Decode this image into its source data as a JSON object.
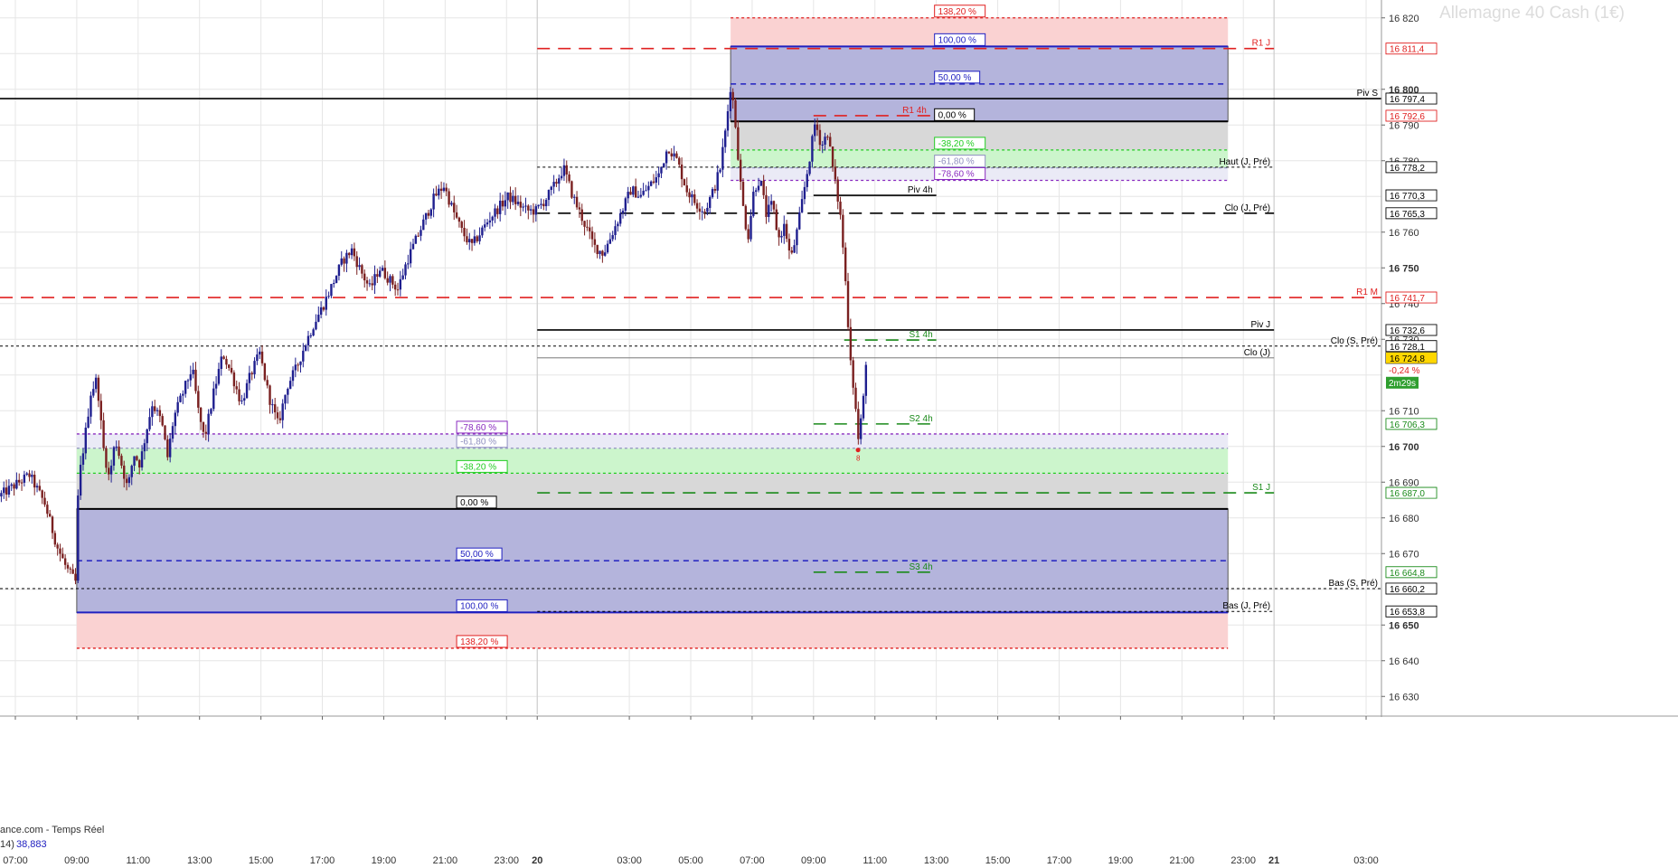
{
  "colors": {
    "background": "#ffffff",
    "grid": "#e6e6e6",
    "candle_up": "#1f1f8f",
    "candle_down": "#7a2020",
    "resistance": "#e02020",
    "support": "#1a8a1a",
    "pivot": "#000000",
    "fib_100": "#2020c0",
    "fib_382": "#22cc22",
    "fib_618": "#9090c0",
    "fib_786": "#8a2bbf",
    "fib_1382": "#e02020",
    "zone_blue": "#b4b4dc",
    "zone_gray": "#d8d8d8",
    "zone_green": "#ccf5cc",
    "zone_lavender": "#eaeaf6",
    "zone_pink": "#fad2d2",
    "price_highlight": "#ffd700",
    "timer_bg": "#2e9e2e"
  },
  "watermark": "Allemagne 40 Cash (1€)",
  "source_label": "ance.com - Temps Réel",
  "indicator": {
    "label": "14)",
    "value": "38,883"
  },
  "timer": "2m29s",
  "chart_data": {
    "type": "candlestick",
    "title": "Allemagne 40 Cash (1€)",
    "y_range": [
      16625,
      16825
    ],
    "x_range_hours": [
      6.5,
      51.5
    ],
    "grid": true,
    "y_ticks": [
      16630,
      16640,
      16650,
      16660,
      16670,
      16680,
      16690,
      16700,
      16710,
      16720,
      16730,
      16740,
      16750,
      16760,
      16770,
      16780,
      16790,
      16800,
      16810,
      16820
    ],
    "y_tick_labels": [
      {
        "v": 16820,
        "t": "16 820"
      },
      {
        "v": 16800,
        "t": "16 800"
      },
      {
        "v": 16790,
        "t": "16 790"
      },
      {
        "v": 16780,
        "t": "16 780"
      },
      {
        "v": 16760,
        "t": "16 760"
      },
      {
        "v": 16750,
        "t": "16 750"
      },
      {
        "v": 16740,
        "t": "16 740"
      },
      {
        "v": 16730,
        "t": "16 730"
      },
      {
        "v": 16710,
        "t": "16 710"
      },
      {
        "v": 16700,
        "t": "16 700"
      },
      {
        "v": 16690,
        "t": "16 690"
      },
      {
        "v": 16680,
        "t": "16 680"
      },
      {
        "v": 16670,
        "t": "16 670"
      },
      {
        "v": 16650,
        "t": "16 650"
      },
      {
        "v": 16640,
        "t": "16 640"
      },
      {
        "v": 16630,
        "t": "16 630"
      }
    ],
    "x_ticks": [
      {
        "h": 7,
        "t": "07:00"
      },
      {
        "h": 9,
        "t": "09:00"
      },
      {
        "h": 11,
        "t": "11:00"
      },
      {
        "h": 13,
        "t": "13:00"
      },
      {
        "h": 15,
        "t": "15:00"
      },
      {
        "h": 17,
        "t": "17:00"
      },
      {
        "h": 19,
        "t": "19:00"
      },
      {
        "h": 21,
        "t": "21:00"
      },
      {
        "h": 23,
        "t": "23:00"
      },
      {
        "h": 24,
        "t": "20"
      },
      {
        "h": 27,
        "t": "03:00"
      },
      {
        "h": 29,
        "t": "05:00"
      },
      {
        "h": 31,
        "t": "07:00"
      },
      {
        "h": 33,
        "t": "09:00"
      },
      {
        "h": 35,
        "t": "11:00"
      },
      {
        "h": 37,
        "t": "13:00"
      },
      {
        "h": 39,
        "t": "15:00"
      },
      {
        "h": 41,
        "t": "17:00"
      },
      {
        "h": 43,
        "t": "19:00"
      },
      {
        "h": 45,
        "t": "21:00"
      },
      {
        "h": 47,
        "t": "23:00"
      },
      {
        "h": 48,
        "t": "21"
      },
      {
        "h": 51,
        "t": "03:00"
      }
    ],
    "day_separators": [
      24,
      48
    ],
    "price_path": [
      [
        6.5,
        16686
      ],
      [
        7.0,
        16689
      ],
      [
        7.5,
        16692
      ],
      [
        8.0,
        16684
      ],
      [
        8.4,
        16672
      ],
      [
        8.7,
        16666
      ],
      [
        9.0,
        16662
      ],
      [
        9.1,
        16690
      ],
      [
        9.3,
        16702
      ],
      [
        9.5,
        16715
      ],
      [
        9.7,
        16719
      ],
      [
        9.9,
        16700
      ],
      [
        10.1,
        16691
      ],
      [
        10.3,
        16702
      ],
      [
        10.5,
        16695
      ],
      [
        10.7,
        16688
      ],
      [
        10.9,
        16698
      ],
      [
        11.1,
        16695
      ],
      [
        11.3,
        16704
      ],
      [
        11.5,
        16712
      ],
      [
        11.8,
        16707
      ],
      [
        12.0,
        16697
      ],
      [
        12.2,
        16708
      ],
      [
        12.5,
        16715
      ],
      [
        12.8,
        16722
      ],
      [
        13.0,
        16710
      ],
      [
        13.2,
        16702
      ],
      [
        13.5,
        16715
      ],
      [
        13.8,
        16726
      ],
      [
        14.1,
        16720
      ],
      [
        14.4,
        16712
      ],
      [
        14.7,
        16720
      ],
      [
        15.0,
        16726
      ],
      [
        15.3,
        16714
      ],
      [
        15.6,
        16706
      ],
      [
        15.9,
        16717
      ],
      [
        16.2,
        16722
      ],
      [
        16.5,
        16729
      ],
      [
        16.8,
        16735
      ],
      [
        17.1,
        16740
      ],
      [
        17.4,
        16746
      ],
      [
        17.7,
        16752
      ],
      [
        18.0,
        16755
      ],
      [
        18.3,
        16749
      ],
      [
        18.6,
        16744
      ],
      [
        18.9,
        16750
      ],
      [
        19.2,
        16747
      ],
      [
        19.5,
        16744
      ],
      [
        19.8,
        16752
      ],
      [
        20.1,
        16758
      ],
      [
        20.4,
        16764
      ],
      [
        20.7,
        16770
      ],
      [
        21.0,
        16773
      ],
      [
        21.3,
        16766
      ],
      [
        21.6,
        16760
      ],
      [
        21.9,
        16756
      ],
      [
        22.2,
        16760
      ],
      [
        22.5,
        16764
      ],
      [
        22.8,
        16767
      ],
      [
        23.1,
        16770
      ],
      [
        23.4,
        16768
      ],
      [
        23.7,
        16766
      ],
      [
        24.0,
        16766
      ],
      [
        24.3,
        16769
      ],
      [
        24.6,
        16773
      ],
      [
        24.9,
        16778
      ],
      [
        25.2,
        16770
      ],
      [
        25.6,
        16762
      ],
      [
        25.9,
        16756
      ],
      [
        26.2,
        16754
      ],
      [
        26.5,
        16760
      ],
      [
        26.8,
        16766
      ],
      [
        27.1,
        16772
      ],
      [
        27.4,
        16770
      ],
      [
        27.7,
        16773
      ],
      [
        28.0,
        16776
      ],
      [
        28.3,
        16784
      ],
      [
        28.6,
        16780
      ],
      [
        28.9,
        16772
      ],
      [
        29.2,
        16768
      ],
      [
        29.5,
        16766
      ],
      [
        29.8,
        16772
      ],
      [
        30.0,
        16778
      ],
      [
        30.2,
        16790
      ],
      [
        30.35,
        16802
      ],
      [
        30.5,
        16790
      ],
      [
        30.7,
        16770
      ],
      [
        30.9,
        16758
      ],
      [
        31.1,
        16772
      ],
      [
        31.3,
        16775
      ],
      [
        31.5,
        16765
      ],
      [
        31.7,
        16768
      ],
      [
        31.9,
        16758
      ],
      [
        32.1,
        16762
      ],
      [
        32.3,
        16752
      ],
      [
        32.5,
        16760
      ],
      [
        32.7,
        16770
      ],
      [
        32.9,
        16780
      ],
      [
        33.1,
        16791
      ],
      [
        33.3,
        16784
      ],
      [
        33.5,
        16788
      ],
      [
        33.7,
        16776
      ],
      [
        33.9,
        16766
      ],
      [
        34.0,
        16756
      ],
      [
        34.1,
        16744
      ],
      [
        34.2,
        16730
      ],
      [
        34.3,
        16720
      ],
      [
        34.4,
        16712
      ],
      [
        34.5,
        16702
      ],
      [
        34.6,
        16708
      ],
      [
        34.7,
        16716
      ],
      [
        34.75,
        16724
      ]
    ],
    "fib_upper": {
      "x_start": 30.3,
      "x_end": 46.5,
      "levels": [
        {
          "name": "138,20 %",
          "value": 16820,
          "kind": "fib_1382"
        },
        {
          "name": "100,00 %",
          "value": 16812,
          "kind": "fib_100"
        },
        {
          "name": "50,00 %",
          "value": 16801.5,
          "kind": "fib_100"
        },
        {
          "name": "0,00 %",
          "value": 16791,
          "kind": "pivot"
        },
        {
          "name": "-38,20 %",
          "value": 16783,
          "kind": "fib_382"
        },
        {
          "name": "-61,80 %",
          "value": 16778,
          "kind": "fib_618"
        },
        {
          "name": "-78,60 %",
          "value": 16774.5,
          "kind": "fib_786"
        }
      ]
    },
    "fib_lower": {
      "x_start": 9.0,
      "x_end": 46.5,
      "levels": [
        {
          "name": "-78,60 %",
          "value": 16703.5,
          "kind": "fib_786"
        },
        {
          "name": "-61,80 %",
          "value": 16699.5,
          "kind": "fib_618"
        },
        {
          "name": "-38,20 %",
          "value": 16692.5,
          "kind": "fib_382"
        },
        {
          "name": "0,00 %",
          "value": 16682.5,
          "kind": "pivot"
        },
        {
          "name": "50,00 %",
          "value": 16668,
          "kind": "fib_100"
        },
        {
          "name": "100,00 %",
          "value": 16653.5,
          "kind": "fib_100"
        },
        {
          "name": "138,20 %",
          "value": 16643.5,
          "kind": "fib_1382"
        }
      ]
    },
    "levels": [
      {
        "name": "R1 J",
        "value": 16811.4,
        "price": "16 811,4",
        "x_start": 24.0,
        "x_end": 48.0,
        "kind": "resistance",
        "style": "dash"
      },
      {
        "name": "Piv S",
        "value": 16797.4,
        "price": "16 797,4",
        "x_start": 6.5,
        "x_end": 51.5,
        "kind": "pivot",
        "style": "solid"
      },
      {
        "name": "R1 4h",
        "value": 16792.6,
        "price": "16 792,6",
        "x_start": 33.0,
        "x_end": 36.8,
        "kind": "resistance",
        "style": "dash"
      },
      {
        "name": "Haut (J, Pré)",
        "value": 16778.2,
        "price": "16 778,2",
        "x_start": 24.0,
        "x_end": 48.0,
        "kind": "pivot",
        "style": "dot"
      },
      {
        "name": "Piv 4h",
        "value": 16770.3,
        "price": "16 770,3",
        "x_start": 33.0,
        "x_end": 37.0,
        "kind": "pivot",
        "style": "solid"
      },
      {
        "name": "Clo (J, Pré)",
        "value": 16765.3,
        "price": "16 765,3",
        "x_start": 24.0,
        "x_end": 48.0,
        "kind": "pivot",
        "style": "dash"
      },
      {
        "name": "R1 M",
        "value": 16741.7,
        "price": "16 741,7",
        "x_start": 6.5,
        "x_end": 51.5,
        "kind": "resistance",
        "style": "dash"
      },
      {
        "name": "Piv J",
        "value": 16732.6,
        "price": "16 732,6",
        "x_start": 24.0,
        "x_end": 48.0,
        "kind": "pivot",
        "style": "solid"
      },
      {
        "name": "S1 4h",
        "value": 16729.8,
        "price": "",
        "x_start": 34.0,
        "x_end": 37.0,
        "kind": "support",
        "style": "dash"
      },
      {
        "name": "Clo (S, Pré)",
        "value": 16728.1,
        "price": "16 728,1",
        "x_start": 6.5,
        "x_end": 51.5,
        "kind": "pivot",
        "style": "dot"
      },
      {
        "name": "Clo (J)",
        "value": 16724.8,
        "price": "16 724,8",
        "x_start": 24.0,
        "x_end": 48.0,
        "kind": "pivot",
        "style": "thin"
      },
      {
        "name": "S2 4h",
        "value": 16706.3,
        "price": "16 706,3",
        "x_start": 33.0,
        "x_end": 37.0,
        "kind": "support",
        "style": "dash"
      },
      {
        "name": "S1 J",
        "value": 16687.0,
        "price": "16 687,0",
        "x_start": 24.0,
        "x_end": 48.0,
        "kind": "support",
        "style": "dash"
      },
      {
        "name": "S3 4h",
        "value": 16664.8,
        "price": "16 664,8",
        "x_start": 33.0,
        "x_end": 37.0,
        "kind": "support",
        "style": "dash"
      },
      {
        "name": "Bas (S, Pré)",
        "value": 16660.2,
        "price": "16 660,2",
        "x_start": 6.5,
        "x_end": 51.5,
        "kind": "pivot",
        "style": "dot"
      },
      {
        "name": "Bas (J, Pré)",
        "value": 16653.8,
        "price": "16 653,8",
        "x_start": 24.0,
        "x_end": 48.0,
        "kind": "pivot",
        "style": "dot"
      }
    ],
    "current_price": {
      "value": 16724.8,
      "label": "16 724,8",
      "change": "-0,24 %"
    },
    "marker": {
      "x": 34.45,
      "value": 16699,
      "label": "8"
    }
  }
}
